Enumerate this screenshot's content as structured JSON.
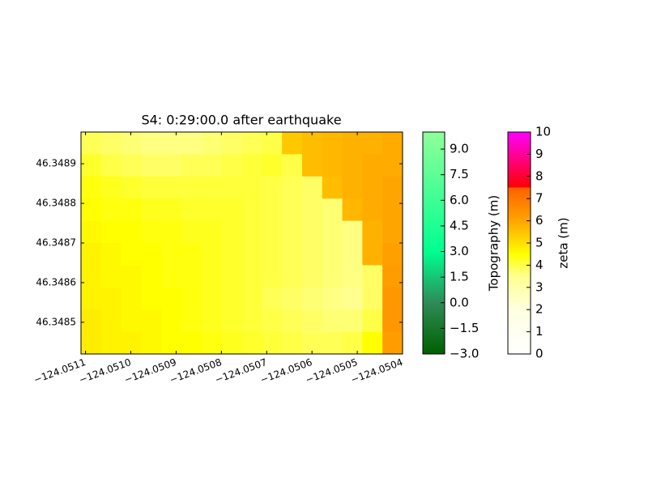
{
  "chart_data": {
    "type": "heatmap",
    "title": "S4: 0:29:00.0 after earthquake",
    "xlim": [
      -124.05111,
      -124.0504
    ],
    "ylim": [
      46.34842,
      46.34898
    ],
    "xticks": [
      {
        "value": -124.0511,
        "label": "−124.0511"
      },
      {
        "value": -124.051,
        "label": "−124.0510"
      },
      {
        "value": -124.0509,
        "label": "−124.0509"
      },
      {
        "value": -124.0508,
        "label": "−124.0508"
      },
      {
        "value": -124.0507,
        "label": "−124.0507"
      },
      {
        "value": -124.0506,
        "label": "−124.0506"
      },
      {
        "value": -124.0505,
        "label": "−124.0505"
      },
      {
        "value": -124.0504,
        "label": "−124.0504"
      }
    ],
    "yticks": [
      46.3485,
      46.3486,
      46.3487,
      46.3488,
      46.3489
    ],
    "z": [
      [
        3.9,
        3.8,
        3.7,
        3.6,
        3.6,
        3.6,
        3.7,
        3.8,
        3.9,
        4.0,
        5.4,
        5.6,
        5.7,
        5.8,
        5.8,
        5.9
      ],
      [
        4.2,
        4.0,
        3.9,
        3.8,
        3.8,
        3.9,
        3.9,
        4.0,
        4.1,
        4.2,
        4.0,
        5.6,
        5.7,
        5.8,
        5.9,
        5.9
      ],
      [
        4.4,
        4.3,
        4.2,
        4.1,
        4.1,
        4.1,
        4.1,
        4.1,
        4.1,
        4.0,
        3.9,
        3.8,
        5.6,
        5.8,
        5.9,
        6.0
      ],
      [
        4.5,
        4.4,
        4.4,
        4.3,
        4.3,
        4.2,
        4.2,
        4.2,
        4.1,
        4.0,
        3.9,
        3.8,
        3.7,
        5.7,
        5.9,
        6.0
      ],
      [
        4.6,
        4.5,
        4.5,
        4.4,
        4.4,
        4.3,
        4.3,
        4.2,
        4.1,
        4.0,
        3.9,
        3.8,
        3.7,
        3.6,
        5.8,
        6.0
      ],
      [
        4.7,
        4.6,
        4.5,
        4.5,
        4.4,
        4.4,
        4.3,
        4.2,
        4.1,
        4.0,
        3.9,
        3.8,
        3.7,
        3.6,
        5.8,
        6.1
      ],
      [
        4.7,
        4.6,
        4.6,
        4.5,
        4.4,
        4.4,
        4.3,
        4.2,
        4.1,
        4.0,
        3.9,
        3.8,
        3.7,
        3.6,
        3.8,
        6.2
      ],
      [
        4.7,
        4.7,
        4.6,
        4.5,
        4.5,
        4.4,
        4.3,
        4.2,
        4.1,
        3.9,
        3.8,
        3.7,
        3.6,
        3.5,
        3.8,
        6.3
      ],
      [
        4.8,
        4.7,
        4.6,
        4.6,
        4.5,
        4.4,
        4.3,
        4.2,
        4.1,
        4.0,
        3.9,
        3.8,
        3.7,
        3.7,
        4.0,
        6.3
      ],
      [
        4.8,
        4.7,
        4.7,
        4.6,
        4.5,
        4.5,
        4.4,
        4.3,
        4.2,
        4.1,
        4.0,
        3.9,
        3.9,
        4.0,
        4.5,
        6.2
      ]
    ],
    "colorbar": {
      "label": "zeta (m)",
      "lim": [
        0,
        10
      ],
      "ticks": [
        0,
        1,
        2,
        3,
        4,
        5,
        6,
        7,
        8,
        9,
        10
      ],
      "stops": [
        [
          0,
          "#ffffff"
        ],
        [
          2,
          "#ffffe0"
        ],
        [
          3.5,
          "#ffff90"
        ],
        [
          4.5,
          "#ffff00"
        ],
        [
          5,
          "#ffe000"
        ],
        [
          6,
          "#ffa500"
        ],
        [
          7.5,
          "#ff6000"
        ],
        [
          7.5,
          "#ff0000"
        ],
        [
          10,
          "#ff00ff"
        ]
      ]
    },
    "colorbar2": {
      "label": "Topography (m)",
      "lim": [
        -3,
        10
      ],
      "ticks": [
        {
          "value": -3,
          "label": "−3.0"
        },
        {
          "value": -1.5,
          "label": "−1.5"
        },
        {
          "value": 0,
          "label": "0.0"
        },
        {
          "value": 1.5,
          "label": "1.5"
        },
        {
          "value": 3,
          "label": "3.0"
        },
        {
          "value": 4.5,
          "label": "4.5"
        },
        {
          "value": 6,
          "label": "6.0"
        },
        {
          "value": 7.5,
          "label": "7.5"
        },
        {
          "value": 9,
          "label": "9.0"
        }
      ],
      "stops": [
        [
          -3,
          "#006000"
        ],
        [
          0,
          "#2e8b57"
        ],
        [
          3,
          "#00ff90"
        ],
        [
          10,
          "#90ff9a"
        ]
      ]
    }
  }
}
